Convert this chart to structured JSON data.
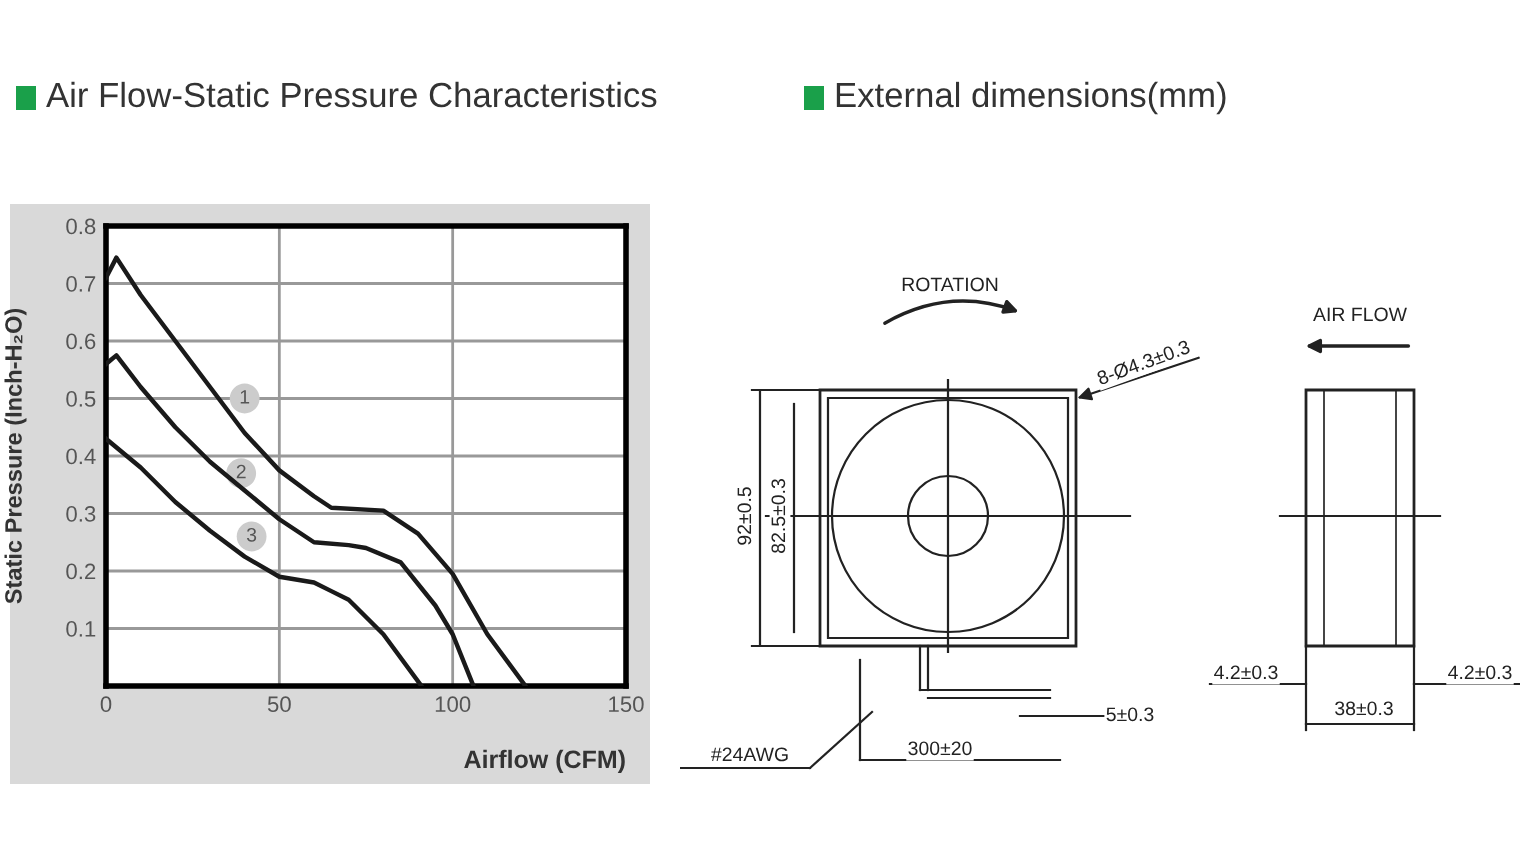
{
  "chart_data": [
    {
      "type": "line",
      "title": "Air Flow-Static Pressure Characteristics",
      "xlabel": "Airflow (CFM)",
      "ylabel": "Static Pressure (Inch-H₂O)",
      "xlim": [
        0,
        150
      ],
      "ylim": [
        0,
        0.8
      ],
      "xticks": [
        0,
        50,
        100,
        150
      ],
      "yticks": [
        0.1,
        0.2,
        0.3,
        0.4,
        0.5,
        0.6,
        0.7,
        0.8
      ],
      "grid": true,
      "series": [
        {
          "color": "#1a1a1a",
          "x": [
            0,
            3,
            10,
            20,
            30,
            40,
            50,
            60,
            65,
            80,
            90,
            100,
            110,
            121
          ],
          "values": [
            0.71,
            0.745,
            0.68,
            0.6,
            0.52,
            0.44,
            0.375,
            0.33,
            0.31,
            0.305,
            0.265,
            0.195,
            0.09,
            0
          ]
        },
        {
          "color": "#1a1a1a",
          "x": [
            0,
            3,
            10,
            20,
            30,
            40,
            50,
            60,
            70,
            75,
            85,
            95,
            100,
            106
          ],
          "values": [
            0.56,
            0.575,
            0.52,
            0.45,
            0.39,
            0.34,
            0.29,
            0.25,
            0.245,
            0.24,
            0.215,
            0.14,
            0.09,
            0
          ]
        },
        {
          "color": "#1a1a1a",
          "x": [
            0,
            10,
            20,
            30,
            40,
            50,
            60,
            65,
            70,
            80,
            91
          ],
          "values": [
            0.43,
            0.38,
            0.32,
            0.27,
            0.225,
            0.19,
            0.18,
            0.165,
            0.15,
            0.09,
            0
          ]
        }
      ],
      "annotations": [
        {
          "text": "1",
          "x": 40,
          "y": 0.5
        },
        {
          "text": "2",
          "x": 39,
          "y": 0.37
        },
        {
          "text": "3",
          "x": 42,
          "y": 0.26
        }
      ]
    },
    {
      "type": "other",
      "title": "External dimensions(mm)",
      "annotations": [
        "ROTATION",
        "AIR FLOW",
        "8-Ø4.3±0.3",
        "92±0.5",
        "82.5±0.3",
        "#24AWG",
        "300±20",
        "5±0.3",
        "4.2±0.3",
        "38±0.3",
        "4.2±0.3"
      ]
    }
  ]
}
